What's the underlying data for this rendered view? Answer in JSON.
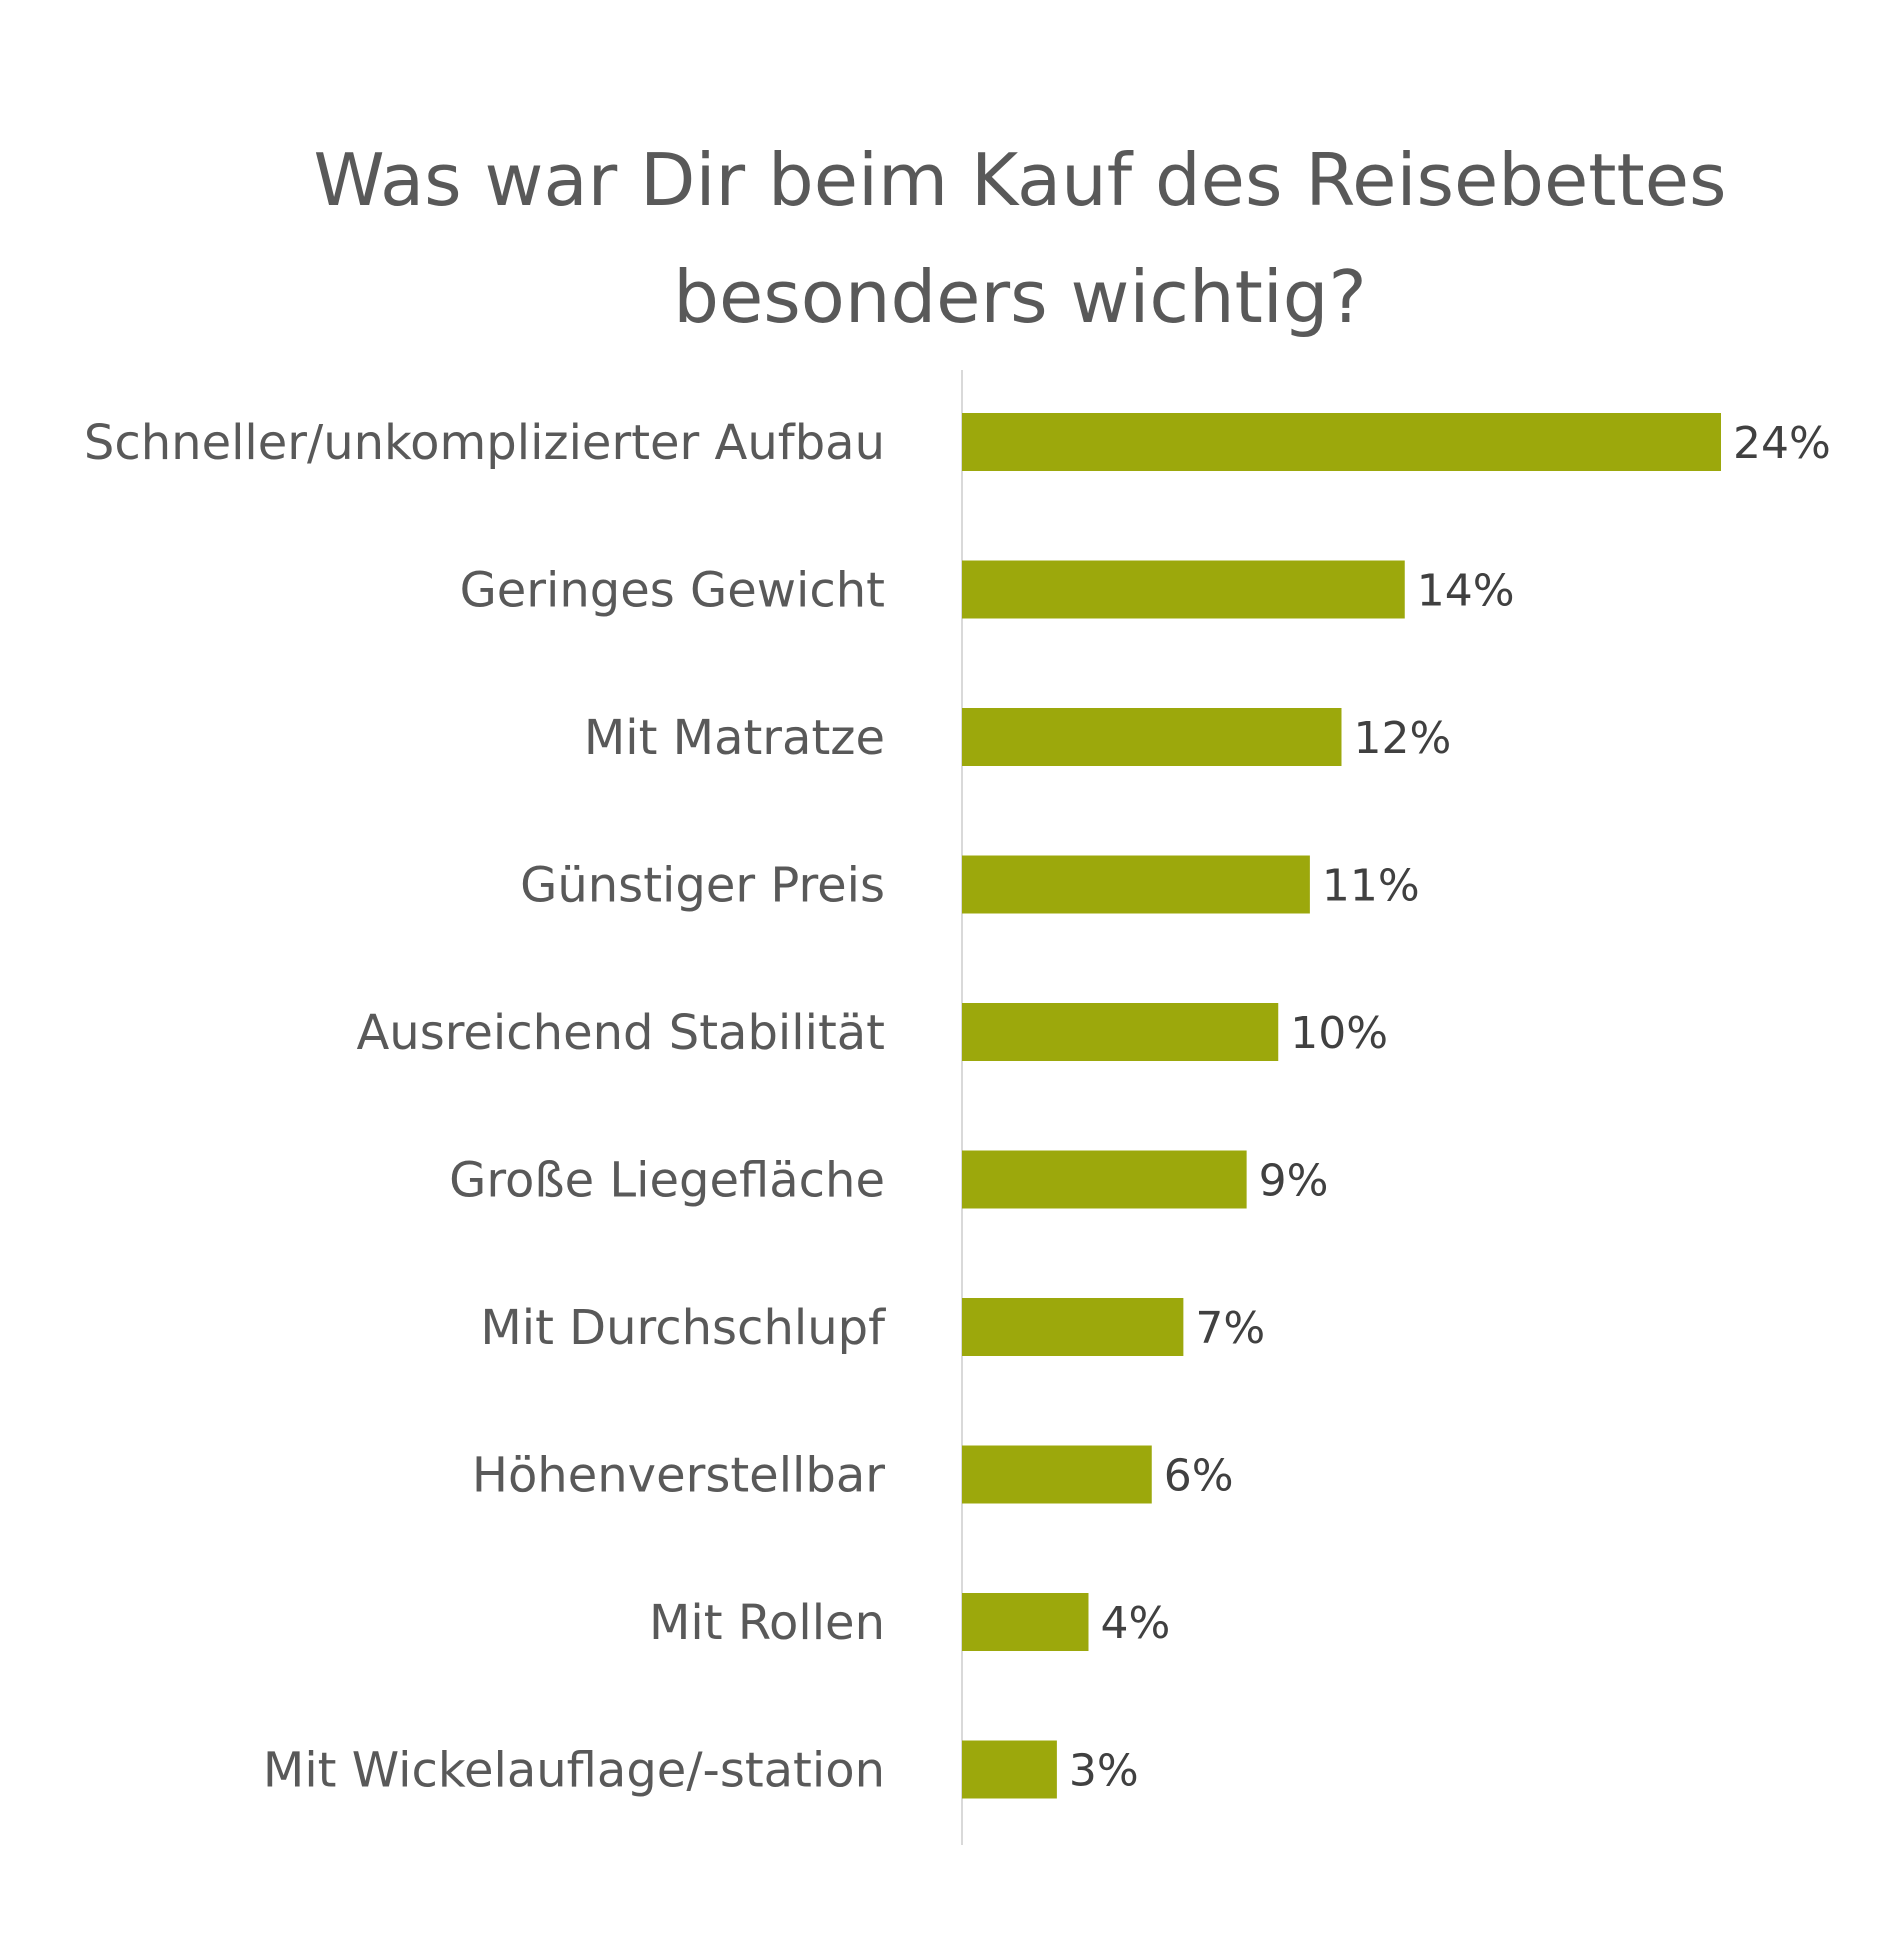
{
  "chart_data": {
    "type": "bar",
    "orientation": "horizontal",
    "title_lines": [
      "Was war Dir beim Kauf des Reisebettes",
      "besonders wichtig?"
    ],
    "categories": [
      "Schneller/unkomplizierter Aufbau",
      "Geringes Gewicht",
      "Mit Matratze",
      "Günstiger Preis",
      "Ausreichend Stabilität",
      "Große Liegefläche",
      "Mit Durchschlupf",
      "Höhenverstellbar",
      "Mit Rollen",
      "Mit Wickelauflage/-station"
    ],
    "values": [
      24,
      14,
      12,
      11,
      10,
      9,
      7,
      6,
      4,
      3
    ],
    "value_labels": [
      "24%",
      "14%",
      "12%",
      "11%",
      "10%",
      "9%",
      "7%",
      "6%",
      "4%",
      "3%"
    ],
    "unit": "%",
    "xlim": [
      0,
      24
    ],
    "grid": false,
    "legend": "none",
    "bar_color": "#9ca80c",
    "axis_color": "#d9d9d9"
  }
}
